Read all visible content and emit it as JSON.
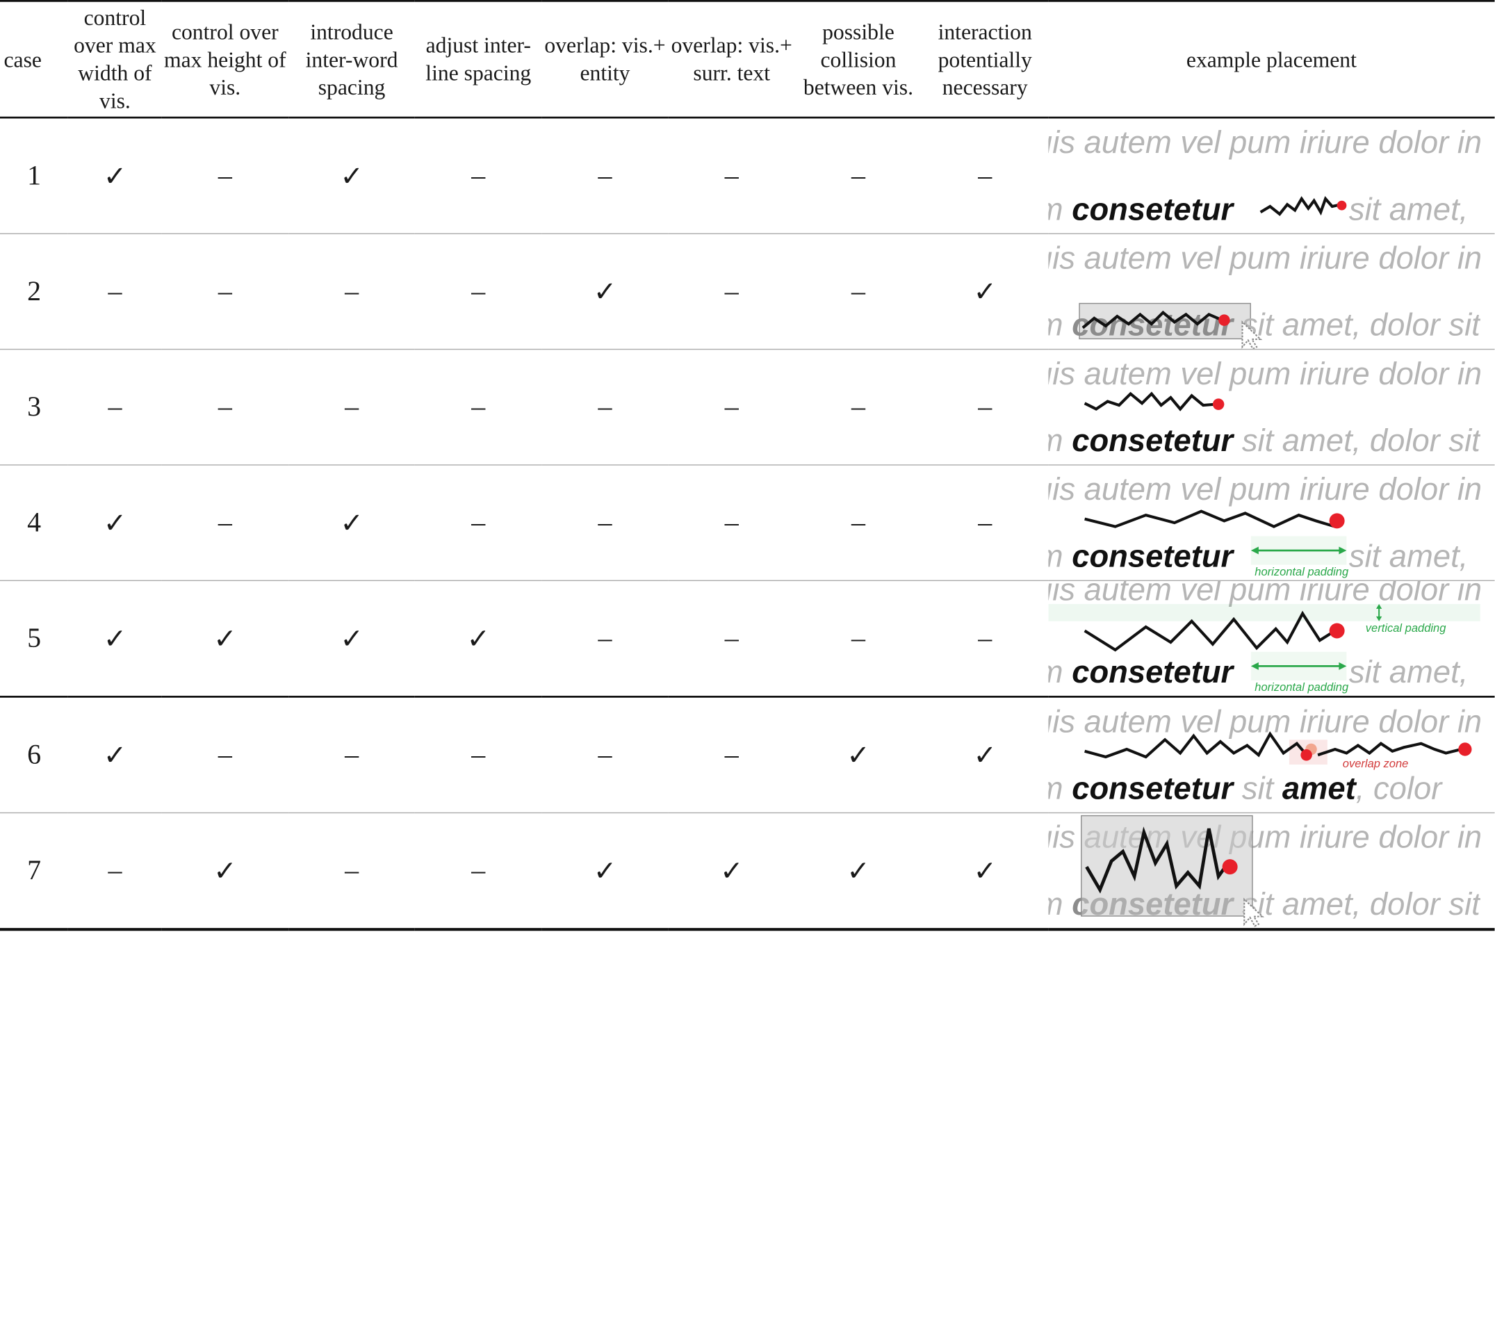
{
  "headers": {
    "case": "case",
    "max_width": "control over max width of vis.",
    "max_height": "control over max height of vis.",
    "inter_word": "introduce inter-word spacing",
    "inter_line": "adjust inter-line spacing",
    "overlap_entity": "overlap: vis.+ entity",
    "overlap_text": "overlap: vis.+ surr. text",
    "collision": "possible collision between vis.",
    "interaction": "interaction potentially necessary",
    "example": "example placement"
  },
  "rows": [
    {
      "case": "1",
      "marks": [
        "✓",
        "–",
        "✓",
        "–",
        "–",
        "–",
        "–",
        "–"
      ]
    },
    {
      "case": "2",
      "marks": [
        "–",
        "–",
        "–",
        "–",
        "✓",
        "–",
        "–",
        "✓"
      ]
    },
    {
      "case": "3",
      "marks": [
        "–",
        "–",
        "–",
        "–",
        "–",
        "–",
        "–",
        "–"
      ]
    },
    {
      "case": "4",
      "marks": [
        "✓",
        "–",
        "✓",
        "–",
        "–",
        "–",
        "–",
        "–"
      ]
    },
    {
      "case": "5",
      "marks": [
        "✓",
        "✓",
        "✓",
        "✓",
        "–",
        "–",
        "–",
        "–"
      ]
    },
    {
      "case": "6",
      "marks": [
        "✓",
        "–",
        "–",
        "–",
        "–",
        "–",
        "✓",
        "✓"
      ]
    },
    {
      "case": "7",
      "marks": [
        "–",
        "✓",
        "–",
        "–",
        "✓",
        "✓",
        "✓",
        "✓"
      ]
    }
  ],
  "example": {
    "line1": "uis autem vel pum iriure dolor in",
    "prefix": "m ",
    "keyword": "consetetur",
    "rest": " sit amet, dolor sit",
    "rest_short": " sit amet,",
    "row6_sit": " sit ",
    "row6_amet": "amet",
    "row6_tail": ", color",
    "horizontal_padding": "horizontal padding",
    "vertical_padding": "vertical padding",
    "overlap_zone": "overlap zone"
  },
  "colors": {
    "accent_red": "#e8202a",
    "padding_green": "#2aa84a",
    "grey_text": "#b5b5b5"
  }
}
